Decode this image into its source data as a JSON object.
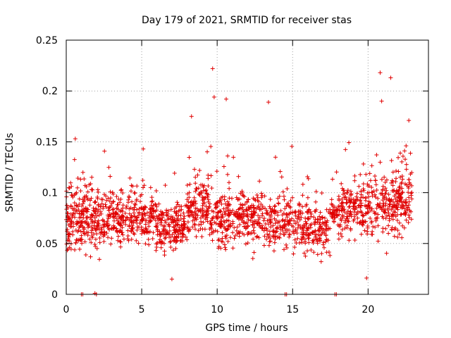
{
  "chart_data": {
    "type": "scatter",
    "title": "Day 179 of 2021, SRMTID for receiver stas",
    "xlabel": "GPS time / hours",
    "ylabel": "SRMTID / TECUs",
    "xlim": [
      0,
      24
    ],
    "ylim": [
      0,
      0.25
    ],
    "xticks": [
      0,
      5,
      10,
      15,
      20
    ],
    "yticks": [
      0,
      0.05,
      0.1,
      0.15,
      0.2,
      0.25
    ],
    "xtick_labels": [
      "0",
      "5",
      "10",
      "15",
      "20"
    ],
    "ytick_labels": [
      "0",
      "0.05",
      "0.1",
      "0.15",
      "0.2",
      "0.25"
    ],
    "grid": true,
    "marker": "+",
    "color": "#e00000",
    "x_range_of_points": [
      0,
      22.9
    ],
    "typical_value_range": [
      0.03,
      0.13
    ],
    "point_count_approx": 2000,
    "notable_points": [
      {
        "x": 9.7,
        "y": 0.222
      },
      {
        "x": 20.8,
        "y": 0.218
      },
      {
        "x": 21.5,
        "y": 0.213
      },
      {
        "x": 9.8,
        "y": 0.194
      },
      {
        "x": 10.6,
        "y": 0.192
      },
      {
        "x": 13.4,
        "y": 0.189
      },
      {
        "x": 20.9,
        "y": 0.19
      },
      {
        "x": 8.3,
        "y": 0.175
      },
      {
        "x": 22.7,
        "y": 0.171
      },
      {
        "x": 0.6,
        "y": 0.153
      },
      {
        "x": 5.1,
        "y": 0.143
      },
      {
        "x": 7.0,
        "y": 0.015
      },
      {
        "x": 19.9,
        "y": 0.016
      },
      {
        "x": 1.0,
        "y": 0.0
      },
      {
        "x": 1.1,
        "y": 0.0
      },
      {
        "x": 1.9,
        "y": 0.001
      },
      {
        "x": 2.0,
        "y": 0.0
      },
      {
        "x": 14.5,
        "y": 0.0
      },
      {
        "x": 14.6,
        "y": 0.0
      },
      {
        "x": 17.8,
        "y": 0.0
      },
      {
        "x": 17.9,
        "y": 0.0
      }
    ],
    "segments": [
      {
        "from": 0.0,
        "to": 3.0,
        "mean": 0.075,
        "spread": 0.025
      },
      {
        "from": 3.0,
        "to": 6.0,
        "mean": 0.075,
        "spread": 0.022
      },
      {
        "from": 6.0,
        "to": 8.0,
        "mean": 0.065,
        "spread": 0.02
      },
      {
        "from": 8.0,
        "to": 9.5,
        "mean": 0.085,
        "spread": 0.022
      },
      {
        "from": 9.5,
        "to": 13.0,
        "mean": 0.075,
        "spread": 0.022
      },
      {
        "from": 13.0,
        "to": 15.5,
        "mean": 0.07,
        "spread": 0.022
      },
      {
        "from": 15.5,
        "to": 17.5,
        "mean": 0.065,
        "spread": 0.02
      },
      {
        "from": 17.5,
        "to": 18.0,
        "mean": 0.08,
        "spread": 0.01
      },
      {
        "from": 18.0,
        "to": 20.0,
        "mean": 0.085,
        "spread": 0.022
      },
      {
        "from": 20.0,
        "to": 22.9,
        "mean": 0.09,
        "spread": 0.03
      }
    ]
  }
}
